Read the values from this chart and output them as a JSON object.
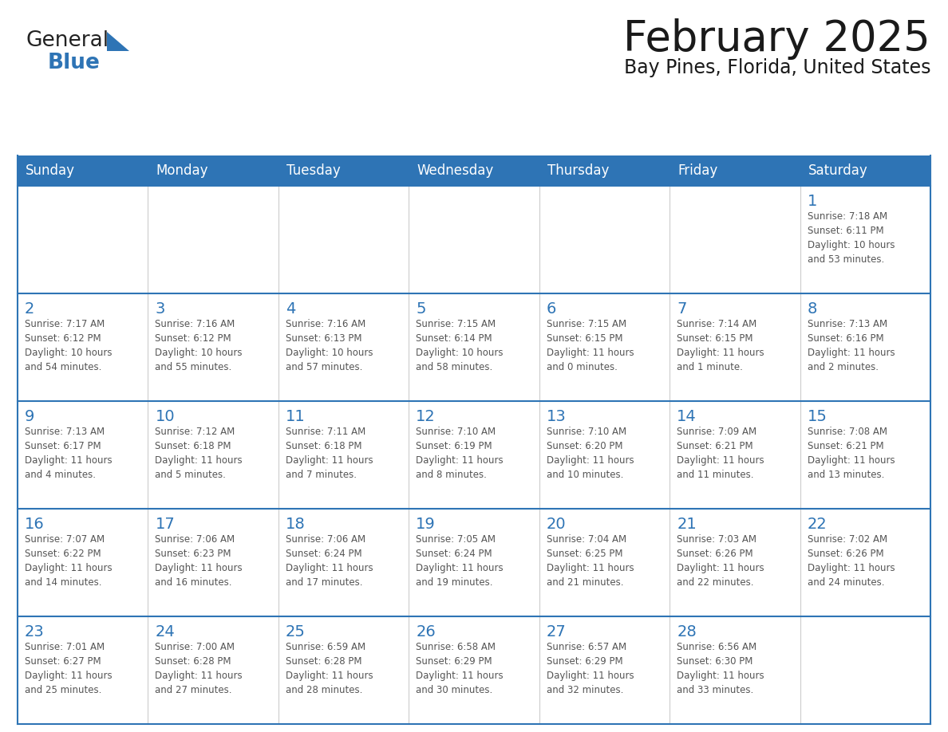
{
  "title": "February 2025",
  "subtitle": "Bay Pines, Florida, United States",
  "header_bg": "#2E74B5",
  "header_text_color": "#FFFFFF",
  "cell_bg": "#FFFFFF",
  "day_number_color": "#2E74B5",
  "text_color": "#555555",
  "border_color": "#2E74B5",
  "light_border_color": "#aaaaaa",
  "days_of_week": [
    "Sunday",
    "Monday",
    "Tuesday",
    "Wednesday",
    "Thursday",
    "Friday",
    "Saturday"
  ],
  "weeks": [
    [
      {
        "day": "",
        "info": ""
      },
      {
        "day": "",
        "info": ""
      },
      {
        "day": "",
        "info": ""
      },
      {
        "day": "",
        "info": ""
      },
      {
        "day": "",
        "info": ""
      },
      {
        "day": "",
        "info": ""
      },
      {
        "day": "1",
        "info": "Sunrise: 7:18 AM\nSunset: 6:11 PM\nDaylight: 10 hours\nand 53 minutes."
      }
    ],
    [
      {
        "day": "2",
        "info": "Sunrise: 7:17 AM\nSunset: 6:12 PM\nDaylight: 10 hours\nand 54 minutes."
      },
      {
        "day": "3",
        "info": "Sunrise: 7:16 AM\nSunset: 6:12 PM\nDaylight: 10 hours\nand 55 minutes."
      },
      {
        "day": "4",
        "info": "Sunrise: 7:16 AM\nSunset: 6:13 PM\nDaylight: 10 hours\nand 57 minutes."
      },
      {
        "day": "5",
        "info": "Sunrise: 7:15 AM\nSunset: 6:14 PM\nDaylight: 10 hours\nand 58 minutes."
      },
      {
        "day": "6",
        "info": "Sunrise: 7:15 AM\nSunset: 6:15 PM\nDaylight: 11 hours\nand 0 minutes."
      },
      {
        "day": "7",
        "info": "Sunrise: 7:14 AM\nSunset: 6:15 PM\nDaylight: 11 hours\nand 1 minute."
      },
      {
        "day": "8",
        "info": "Sunrise: 7:13 AM\nSunset: 6:16 PM\nDaylight: 11 hours\nand 2 minutes."
      }
    ],
    [
      {
        "day": "9",
        "info": "Sunrise: 7:13 AM\nSunset: 6:17 PM\nDaylight: 11 hours\nand 4 minutes."
      },
      {
        "day": "10",
        "info": "Sunrise: 7:12 AM\nSunset: 6:18 PM\nDaylight: 11 hours\nand 5 minutes."
      },
      {
        "day": "11",
        "info": "Sunrise: 7:11 AM\nSunset: 6:18 PM\nDaylight: 11 hours\nand 7 minutes."
      },
      {
        "day": "12",
        "info": "Sunrise: 7:10 AM\nSunset: 6:19 PM\nDaylight: 11 hours\nand 8 minutes."
      },
      {
        "day": "13",
        "info": "Sunrise: 7:10 AM\nSunset: 6:20 PM\nDaylight: 11 hours\nand 10 minutes."
      },
      {
        "day": "14",
        "info": "Sunrise: 7:09 AM\nSunset: 6:21 PM\nDaylight: 11 hours\nand 11 minutes."
      },
      {
        "day": "15",
        "info": "Sunrise: 7:08 AM\nSunset: 6:21 PM\nDaylight: 11 hours\nand 13 minutes."
      }
    ],
    [
      {
        "day": "16",
        "info": "Sunrise: 7:07 AM\nSunset: 6:22 PM\nDaylight: 11 hours\nand 14 minutes."
      },
      {
        "day": "17",
        "info": "Sunrise: 7:06 AM\nSunset: 6:23 PM\nDaylight: 11 hours\nand 16 minutes."
      },
      {
        "day": "18",
        "info": "Sunrise: 7:06 AM\nSunset: 6:24 PM\nDaylight: 11 hours\nand 17 minutes."
      },
      {
        "day": "19",
        "info": "Sunrise: 7:05 AM\nSunset: 6:24 PM\nDaylight: 11 hours\nand 19 minutes."
      },
      {
        "day": "20",
        "info": "Sunrise: 7:04 AM\nSunset: 6:25 PM\nDaylight: 11 hours\nand 21 minutes."
      },
      {
        "day": "21",
        "info": "Sunrise: 7:03 AM\nSunset: 6:26 PM\nDaylight: 11 hours\nand 22 minutes."
      },
      {
        "day": "22",
        "info": "Sunrise: 7:02 AM\nSunset: 6:26 PM\nDaylight: 11 hours\nand 24 minutes."
      }
    ],
    [
      {
        "day": "23",
        "info": "Sunrise: 7:01 AM\nSunset: 6:27 PM\nDaylight: 11 hours\nand 25 minutes."
      },
      {
        "day": "24",
        "info": "Sunrise: 7:00 AM\nSunset: 6:28 PM\nDaylight: 11 hours\nand 27 minutes."
      },
      {
        "day": "25",
        "info": "Sunrise: 6:59 AM\nSunset: 6:28 PM\nDaylight: 11 hours\nand 28 minutes."
      },
      {
        "day": "26",
        "info": "Sunrise: 6:58 AM\nSunset: 6:29 PM\nDaylight: 11 hours\nand 30 minutes."
      },
      {
        "day": "27",
        "info": "Sunrise: 6:57 AM\nSunset: 6:29 PM\nDaylight: 11 hours\nand 32 minutes."
      },
      {
        "day": "28",
        "info": "Sunrise: 6:56 AM\nSunset: 6:30 PM\nDaylight: 11 hours\nand 33 minutes."
      },
      {
        "day": "",
        "info": ""
      }
    ]
  ],
  "logo_general_color": "#222222",
  "logo_blue_color": "#2E74B5",
  "figsize": [
    11.88,
    9.18
  ],
  "dpi": 100
}
